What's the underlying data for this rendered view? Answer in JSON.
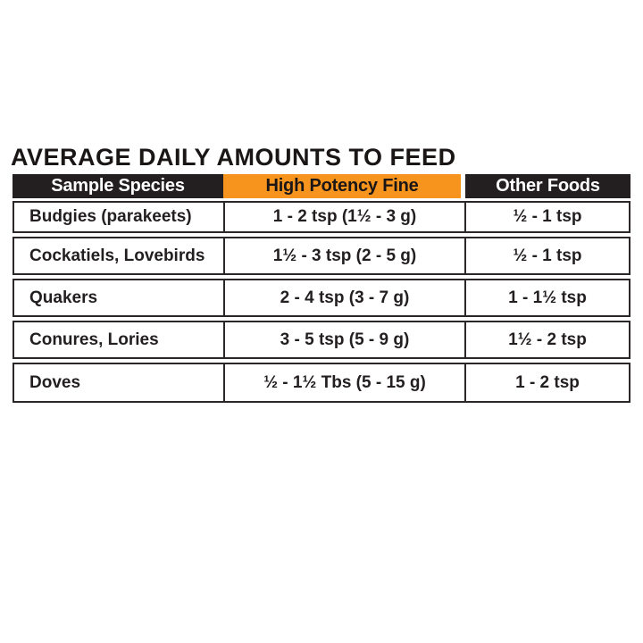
{
  "title": "AVERAGE DAILY AMOUNTS TO FEED",
  "colors": {
    "accent_orange": "#F7941E",
    "header_black": "#231F20",
    "border": "#2B2627",
    "text": "#231F20",
    "background": "#FFFFFF"
  },
  "table": {
    "headers": {
      "species": "Sample Species",
      "high_potency_fine": "High Potency Fine",
      "other_foods": "Other Foods"
    },
    "rows": [
      {
        "species": "Budgies (parakeets)",
        "high_potency_fine": "1 - 2 tsp (1½  - 3 g)",
        "other_foods": "½  - 1 tsp"
      },
      {
        "species": "Cockatiels, Lovebirds",
        "high_potency_fine": "1½ - 3 tsp (2 - 5 g)",
        "other_foods": "½  - 1 tsp"
      },
      {
        "species": "Quakers",
        "high_potency_fine": "2 - 4 tsp (3 - 7 g)",
        "other_foods": "1 - 1½ tsp"
      },
      {
        "species": "Conures, Lories",
        "high_potency_fine": "3 - 5 tsp (5 - 9 g)",
        "other_foods": "1½ - 2 tsp"
      },
      {
        "species": "Doves",
        "high_potency_fine": "½ - 1½ Tbs  (5 - 15 g)",
        "other_foods": "1 - 2 tsp"
      }
    ]
  }
}
